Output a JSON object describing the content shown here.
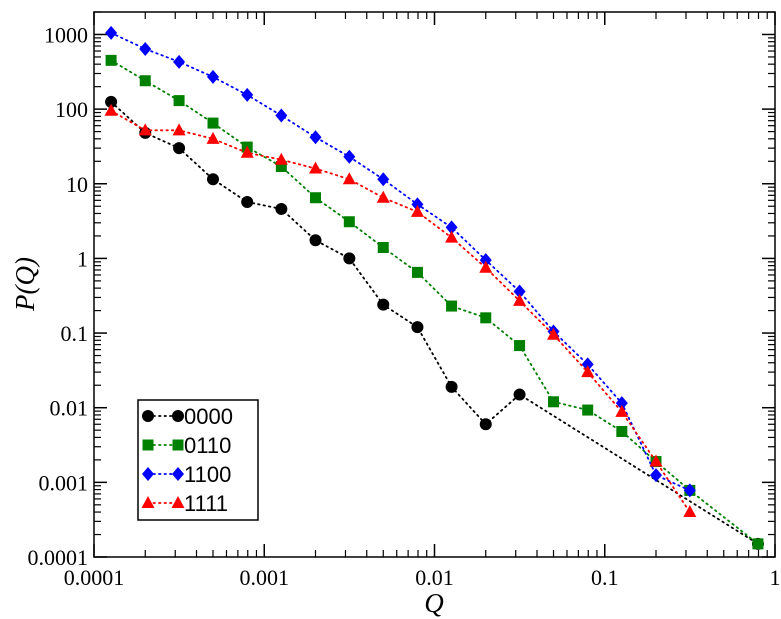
{
  "chart_data": {
    "type": "scatter",
    "xlabel": "Q",
    "ylabel": "P(Q)",
    "xscale": "log",
    "yscale": "log",
    "xlim": [
      0.0001,
      1
    ],
    "ylim": [
      0.0001,
      2000
    ],
    "x_ticks": [
      {
        "value": 0.0001,
        "label": "0.0001"
      },
      {
        "value": 0.001,
        "label": "0.001"
      },
      {
        "value": 0.01,
        "label": "0.01"
      },
      {
        "value": 0.1,
        "label": "0.1"
      },
      {
        "value": 1,
        "label": "1"
      }
    ],
    "y_ticks": [
      {
        "value": 0.0001,
        "label": "0.0001"
      },
      {
        "value": 0.001,
        "label": "0.001"
      },
      {
        "value": 0.01,
        "label": "0.01"
      },
      {
        "value": 0.1,
        "label": "0.1"
      },
      {
        "value": 1,
        "label": "1"
      },
      {
        "value": 10,
        "label": "10"
      },
      {
        "value": 100,
        "label": "100"
      },
      {
        "value": 1000,
        "label": "1000"
      }
    ],
    "grid": false,
    "legend_position": "bottom-left",
    "series": [
      {
        "name": "0000",
        "color": "#000000",
        "marker": "circle",
        "x": [
          0.000126,
          0.0002,
          0.000316,
          0.0005,
          0.000794,
          0.00126,
          0.002,
          0.00316,
          0.005,
          0.00794,
          0.0126,
          0.02,
          0.0316,
          0.794
        ],
        "y": [
          125,
          48,
          30,
          11.5,
          5.7,
          4.6,
          1.75,
          1.0,
          0.24,
          0.12,
          0.019,
          0.006,
          0.015,
          0.00015
        ]
      },
      {
        "name": "0110",
        "color": "#008000",
        "marker": "square",
        "x": [
          0.000126,
          0.0002,
          0.000316,
          0.0005,
          0.000794,
          0.00126,
          0.002,
          0.00316,
          0.005,
          0.00794,
          0.0126,
          0.02,
          0.0316,
          0.05,
          0.0794,
          0.126,
          0.2,
          0.316,
          0.794
        ],
        "y": [
          450,
          240,
          130,
          65,
          31,
          17,
          6.5,
          3.1,
          1.4,
          0.65,
          0.23,
          0.16,
          0.068,
          0.012,
          0.0093,
          0.0048,
          0.0019,
          0.00078,
          0.00015
        ]
      },
      {
        "name": "1100",
        "color": "#0000ff",
        "marker": "diamond",
        "x": [
          0.000126,
          0.0002,
          0.000316,
          0.0005,
          0.000794,
          0.00126,
          0.002,
          0.00316,
          0.005,
          0.00794,
          0.0126,
          0.02,
          0.0316,
          0.05,
          0.0794,
          0.126,
          0.2,
          0.316
        ],
        "y": [
          1050,
          640,
          430,
          270,
          155,
          82,
          42,
          23,
          11.5,
          5.3,
          2.6,
          0.95,
          0.36,
          0.105,
          0.038,
          0.0115,
          0.00125,
          0.00078
        ]
      },
      {
        "name": "1111",
        "color": "#ff0000",
        "marker": "triangle",
        "x": [
          0.000126,
          0.0002,
          0.000316,
          0.0005,
          0.000794,
          0.00126,
          0.002,
          0.00316,
          0.005,
          0.00794,
          0.0126,
          0.02,
          0.0316,
          0.05,
          0.0794,
          0.126,
          0.2,
          0.316
        ],
        "y": [
          95,
          52,
          52,
          40,
          26,
          21,
          16,
          11.5,
          6.5,
          4.2,
          1.9,
          0.75,
          0.27,
          0.095,
          0.03,
          0.0088,
          0.0019,
          0.0004
        ]
      }
    ]
  }
}
